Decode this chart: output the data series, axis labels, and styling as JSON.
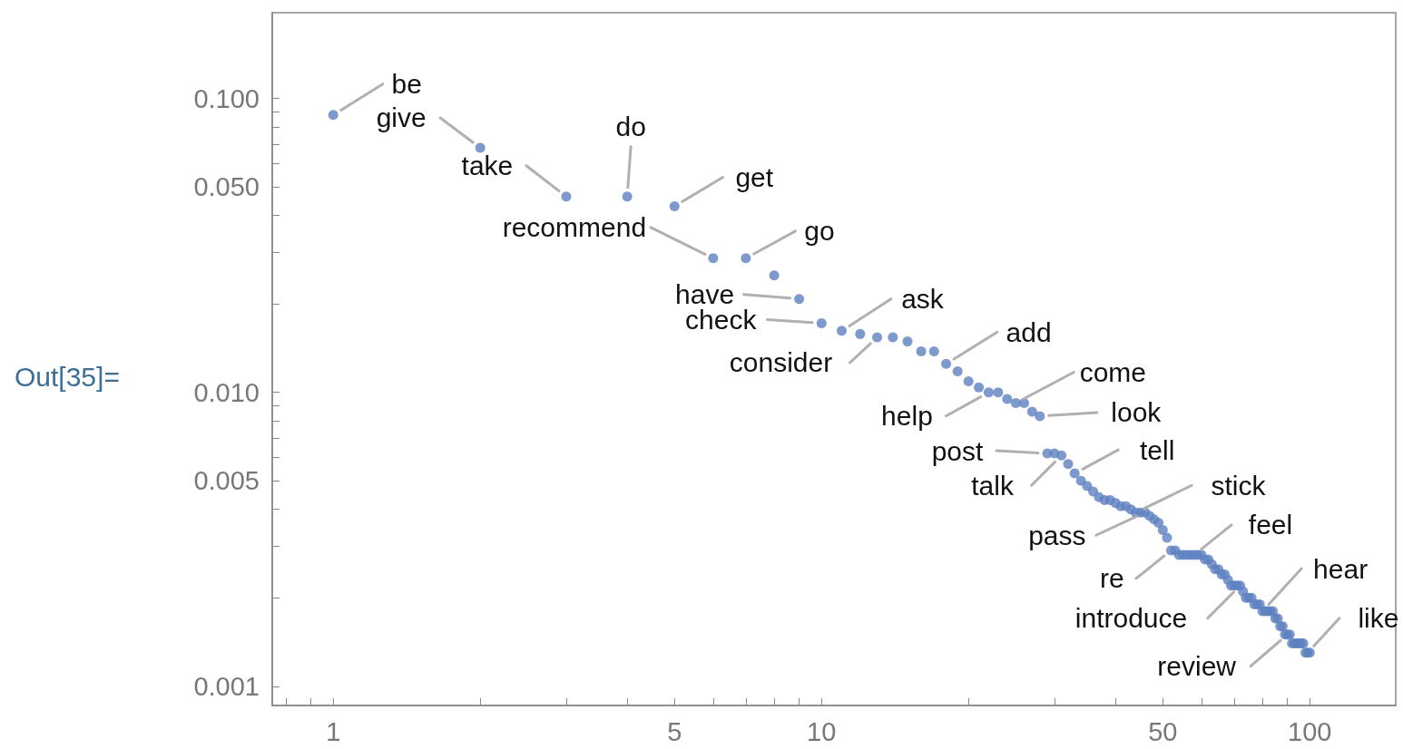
{
  "chart_data": {
    "type": "scatter",
    "log": "xy",
    "marker": "circle",
    "color": "#5e81c1",
    "x": [
      1,
      2,
      3,
      4,
      5,
      6,
      7,
      8,
      9,
      10,
      11,
      12,
      13,
      14,
      15,
      16,
      17,
      18,
      19,
      20,
      21,
      22,
      23,
      24,
      25,
      26,
      27,
      28,
      29,
      30,
      31,
      32,
      33,
      34,
      35,
      36,
      37,
      38,
      39,
      40,
      41,
      42,
      43,
      44,
      45,
      46,
      47,
      48,
      49,
      50,
      51,
      52,
      53,
      54,
      55,
      56,
      57,
      58,
      59,
      60,
      61,
      62,
      63,
      64,
      65,
      66,
      67,
      68,
      69,
      70,
      71,
      72,
      73,
      74,
      75,
      76,
      77,
      78,
      79,
      80,
      81,
      82,
      83,
      84,
      85,
      86,
      87,
      88,
      89,
      90,
      91,
      92,
      93,
      94,
      95,
      96,
      97,
      98,
      99,
      100
    ],
    "values": [
      0.088,
      0.068,
      0.0464,
      0.0464,
      0.043,
      0.0286,
      0.0286,
      0.025,
      0.0208,
      0.0172,
      0.0162,
      0.0158,
      0.0154,
      0.0154,
      0.0149,
      0.0138,
      0.0138,
      0.0125,
      0.0118,
      0.0109,
      0.0104,
      0.01,
      0.01,
      0.0095,
      0.0092,
      0.0092,
      0.0086,
      0.0083,
      0.0062,
      0.0062,
      0.0061,
      0.0057,
      0.0053,
      0.005,
      0.0048,
      0.0046,
      0.0044,
      0.0043,
      0.0043,
      0.0042,
      0.0041,
      0.0041,
      0.004,
      0.0039,
      0.0039,
      0.0039,
      0.0038,
      0.0037,
      0.0036,
      0.0034,
      0.0032,
      0.0029,
      0.0029,
      0.0028,
      0.0028,
      0.0028,
      0.0028,
      0.0028,
      0.0028,
      0.0028,
      0.0027,
      0.0027,
      0.0026,
      0.0025,
      0.0025,
      0.0024,
      0.0024,
      0.0023,
      0.0022,
      0.0022,
      0.0022,
      0.0022,
      0.0021,
      0.002,
      0.002,
      0.002,
      0.0019,
      0.0019,
      0.0019,
      0.0018,
      0.0018,
      0.0018,
      0.0018,
      0.0018,
      0.0017,
      0.0017,
      0.0016,
      0.0016,
      0.0015,
      0.0015,
      0.0015,
      0.0014,
      0.0014,
      0.0014,
      0.0014,
      0.0014,
      0.0014,
      0.0013,
      0.0013,
      0.0013
    ],
    "xlim": [
      0.75,
      150
    ],
    "ylim": [
      0.00086,
      0.196
    ],
    "xticks": [
      {
        "value": 0.8,
        "label": null
      },
      {
        "value": 0.9,
        "label": null
      },
      1,
      {
        "value": 2,
        "label": null
      },
      {
        "value": 3,
        "label": null
      },
      {
        "value": 4,
        "label": null
      },
      5,
      {
        "value": 6,
        "label": null
      },
      {
        "value": 7,
        "label": null
      },
      {
        "value": 8,
        "label": null
      },
      {
        "value": 9,
        "label": null
      },
      10,
      {
        "value": 20,
        "label": null
      },
      {
        "value": 30,
        "label": null
      },
      {
        "value": 40,
        "label": null
      },
      50,
      {
        "value": 60,
        "label": null
      },
      {
        "value": 70,
        "label": null
      },
      {
        "value": 80,
        "label": null
      },
      {
        "value": 90,
        "label": null
      },
      100
    ],
    "yticks": [
      {
        "value": 0.001,
        "label": "0.001"
      },
      {
        "value": 0.002,
        "label": null
      },
      {
        "value": 0.003,
        "label": null
      },
      {
        "value": 0.004,
        "label": null
      },
      {
        "value": 0.005,
        "label": "0.005"
      },
      {
        "value": 0.006,
        "label": null
      },
      {
        "value": 0.007,
        "label": null
      },
      {
        "value": 0.008,
        "label": null
      },
      {
        "value": 0.009,
        "label": null
      },
      {
        "value": 0.01,
        "label": "0.010"
      },
      {
        "value": 0.02,
        "label": null
      },
      {
        "value": 0.03,
        "label": null
      },
      {
        "value": 0.04,
        "label": null
      },
      {
        "value": 0.05,
        "label": "0.050"
      },
      {
        "value": 0.06,
        "label": null
      },
      {
        "value": 0.07,
        "label": null
      },
      {
        "value": 0.08,
        "label": null
      },
      {
        "value": 0.09,
        "label": null
      },
      {
        "value": 0.1,
        "label": "0.100"
      }
    ],
    "annotations": [
      "Out[35]=",
      {
        "text": "be",
        "x": 1,
        "y": 0.088
      },
      {
        "text": "give",
        "x": 2,
        "y": 0.068
      },
      {
        "text": "take",
        "x": 3,
        "y": 0.0464
      },
      {
        "text": "do",
        "x": 4,
        "y": 0.0464
      },
      {
        "text": "get",
        "x": 5,
        "y": 0.043
      },
      {
        "text": "recommend",
        "x": 6,
        "y": 0.0286
      },
      {
        "text": "go",
        "x": 7,
        "y": 0.0286
      },
      {
        "text": "have",
        "x": 9,
        "y": 0.0208
      },
      {
        "text": "check",
        "x": 10,
        "y": 0.0172
      },
      {
        "text": "ask",
        "x": 11,
        "y": 0.0162
      },
      {
        "text": "consider",
        "x": 13,
        "y": 0.0154
      },
      {
        "text": "add",
        "x": 18,
        "y": 0.0125
      },
      {
        "text": "help",
        "x": 22,
        "y": 0.01
      },
      {
        "text": "come",
        "x": 25,
        "y": 0.0092
      },
      {
        "text": "look",
        "x": 28,
        "y": 0.0083
      },
      {
        "text": "post",
        "x": 29,
        "y": 0.0062
      },
      {
        "text": "talk",
        "x": 31,
        "y": 0.0061
      },
      {
        "text": "tell",
        "x": 33,
        "y": 0.0053
      },
      {
        "text": "stick",
        "x": 44,
        "y": 0.0039
      },
      {
        "text": "pass",
        "x": 46,
        "y": 0.0039
      },
      {
        "text": "re",
        "x": 52,
        "y": 0.0029
      },
      {
        "text": "feel",
        "x": 58,
        "y": 0.0028
      },
      {
        "text": "introduce",
        "x": 72,
        "y": 0.0022
      },
      {
        "text": "hear",
        "x": 80,
        "y": 0.0018
      },
      {
        "text": "review",
        "x": 90,
        "y": 0.0015
      },
      {
        "text": "like",
        "x": 99,
        "y": 0.0013
      }
    ]
  }
}
